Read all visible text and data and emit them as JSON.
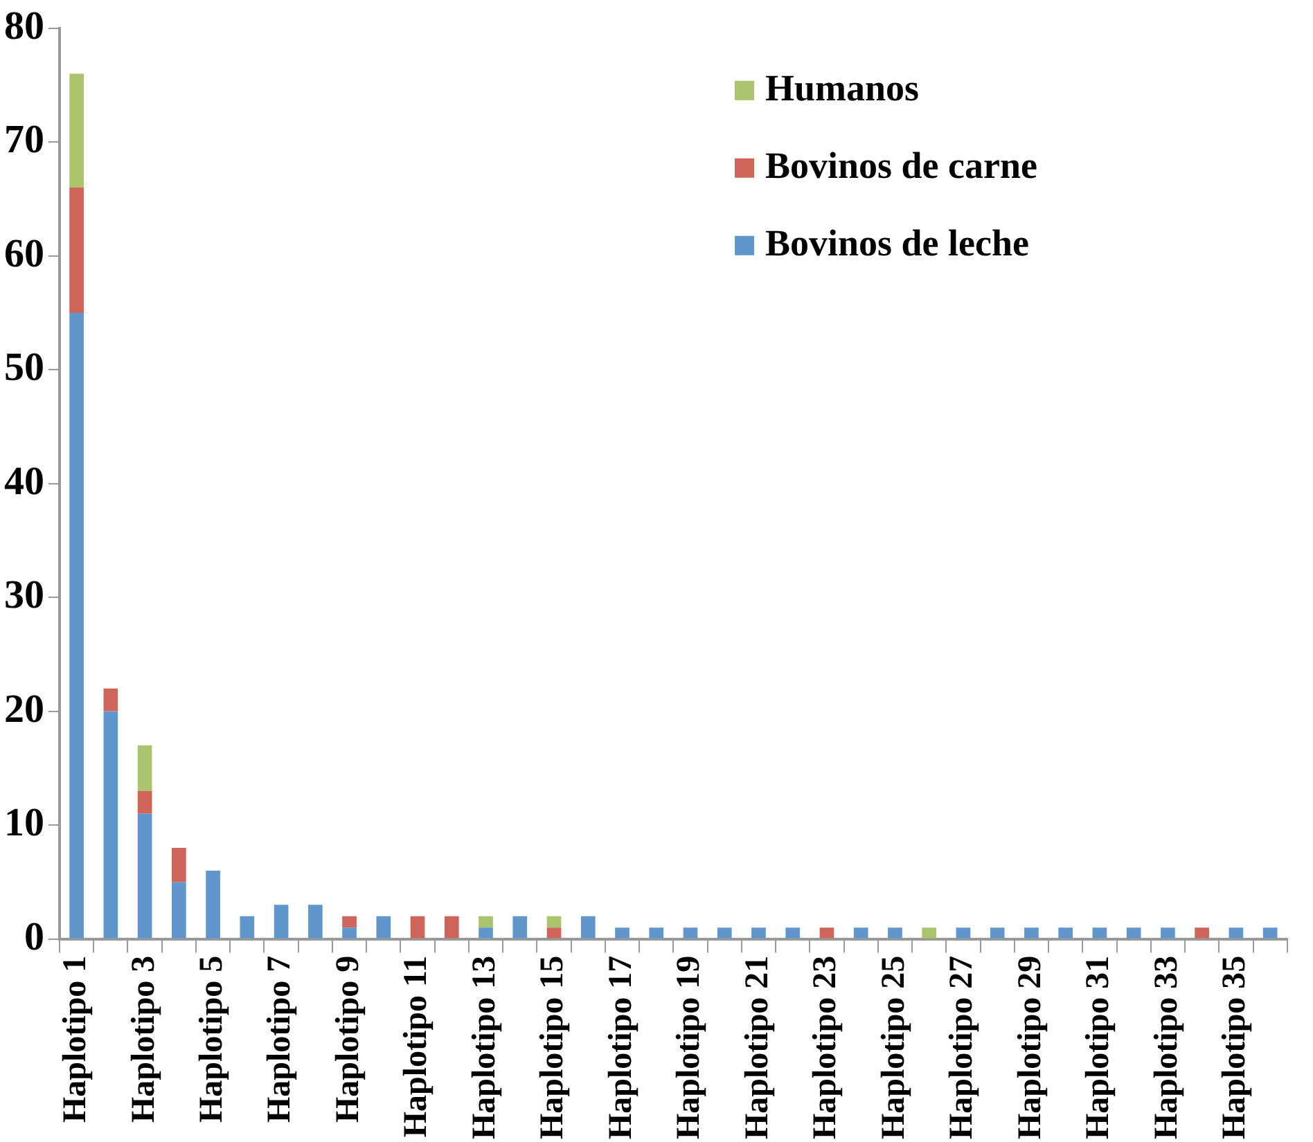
{
  "chart_data": {
    "type": "bar",
    "stacked": true,
    "categories": [
      "Haplotipo 1",
      null,
      "Haplotipo 3",
      null,
      "Haplotipo 5",
      null,
      "Haplotipo 7",
      null,
      "Haplotipo 9",
      null,
      "Haplotipo 11",
      null,
      "Haplotipo 13",
      null,
      "Haplotipo 15",
      null,
      "Haplotipo 17",
      null,
      "Haplotipo 19",
      null,
      "Haplotipo 21",
      null,
      "Haplotipo 23",
      null,
      "Haplotipo 25",
      null,
      "Haplotipo 27",
      null,
      "Haplotipo 29",
      null,
      "Haplotipo 31",
      null,
      "Haplotipo 33",
      null,
      "Haplotipo 35",
      null
    ],
    "series": [
      {
        "name": "Bovinos de leche",
        "color": "#6096cc",
        "values": [
          55,
          20,
          11,
          5,
          6,
          2,
          3,
          3,
          1,
          2,
          0,
          0,
          1,
          2,
          0,
          2,
          1,
          1,
          1,
          1,
          1,
          1,
          0,
          1,
          1,
          0,
          1,
          1,
          1,
          1,
          1,
          1,
          1,
          0,
          1,
          1
        ]
      },
      {
        "name": "Bovinos de carne",
        "color": "#cf645a",
        "values": [
          11,
          2,
          2,
          3,
          0,
          0,
          0,
          0,
          1,
          0,
          2,
          2,
          0,
          0,
          1,
          0,
          0,
          0,
          0,
          0,
          0,
          0,
          1,
          0,
          0,
          0,
          0,
          0,
          0,
          0,
          0,
          0,
          0,
          1,
          0,
          0
        ]
      },
      {
        "name": "Humanos",
        "color": "#a9c46c",
        "values": [
          10,
          0,
          4,
          0,
          0,
          0,
          0,
          0,
          0,
          0,
          0,
          0,
          1,
          0,
          1,
          0,
          0,
          0,
          0,
          0,
          0,
          0,
          0,
          0,
          0,
          1,
          0,
          0,
          0,
          0,
          0,
          0,
          0,
          0,
          0,
          0
        ]
      }
    ],
    "ylim": [
      0,
      80
    ],
    "yticks": [
      0,
      10,
      20,
      30,
      40,
      50,
      60,
      70,
      80
    ],
    "grid": false,
    "legend": "top right"
  }
}
